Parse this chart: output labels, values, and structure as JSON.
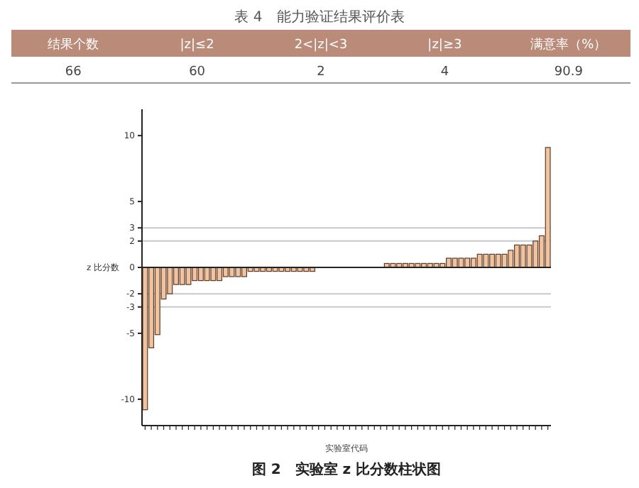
{
  "chart_data": [
    {
      "type": "other",
      "title": "表 4　能力验证结果评价表",
      "categories": [
        "结果个数",
        "|z|≤2",
        "2<|z|<3",
        "|z|≥3",
        "满意率（%）"
      ],
      "values": [
        66,
        60,
        2,
        4,
        90.9
      ],
      "data_labels": true,
      "color": "#b98b78"
    },
    {
      "type": "bar",
      "title": "图 2　实验室 z 比分数柱状图",
      "xlabel": "实验室代码",
      "ylabel": "z 比分数",
      "categories": [
        null,
        null,
        null,
        null,
        null,
        null,
        null,
        null,
        null,
        null,
        null,
        null,
        null,
        null,
        null,
        null,
        null,
        null,
        null,
        null,
        null,
        null,
        null,
        null,
        null,
        null,
        null,
        null,
        null,
        null,
        null,
        null,
        null,
        null,
        null,
        null,
        null,
        null,
        null,
        null,
        null,
        null,
        null,
        null,
        null,
        null,
        null,
        null,
        null,
        null,
        null,
        null,
        null,
        null,
        null,
        null,
        null,
        null,
        null,
        null,
        null,
        null,
        null,
        null,
        null,
        null
      ],
      "values": [
        -10.8,
        -6.1,
        -5.1,
        -2.4,
        -2.0,
        -1.3,
        -1.3,
        -1.3,
        -1.0,
        -1.0,
        -1.0,
        -1.0,
        -1.0,
        -0.7,
        -0.7,
        -0.7,
        -0.7,
        -0.3,
        -0.3,
        -0.3,
        -0.3,
        -0.3,
        -0.3,
        -0.3,
        -0.3,
        -0.3,
        -0.3,
        -0.3,
        0,
        0,
        0,
        0,
        0,
        0,
        0,
        0,
        0,
        0,
        0,
        0.3,
        0.3,
        0.3,
        0.3,
        0.3,
        0.3,
        0.3,
        0.3,
        0.3,
        0.3,
        0.7,
        0.7,
        0.7,
        0.7,
        0.7,
        1.0,
        1.0,
        1.0,
        1.0,
        1.0,
        1.3,
        1.7,
        1.7,
        1.7,
        2.0,
        2.4,
        9.1
      ],
      "color": "#f2c39f",
      "ylim": [
        -12,
        12
      ],
      "yticks": [
        -10,
        -5,
        -3,
        -2,
        0,
        2,
        3,
        5,
        10
      ],
      "tick_labels": "y",
      "ref_lines": [
        {
          "axis": "y",
          "value": 3,
          "color": "#c8c8c8"
        },
        {
          "axis": "y",
          "value": 2,
          "color": "#c8c8c8"
        },
        {
          "axis": "y",
          "value": -2,
          "color": "#c8c8c8"
        },
        {
          "axis": "y",
          "value": -3,
          "color": "#c8c8c8"
        }
      ]
    }
  ]
}
